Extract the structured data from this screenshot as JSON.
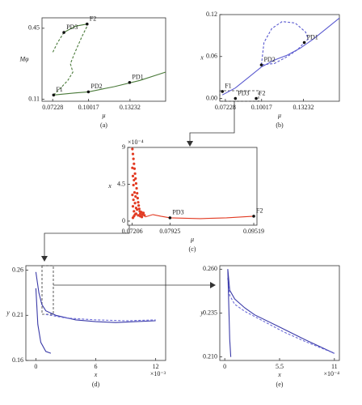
{
  "chart_data": [
    {
      "type": "line",
      "label": "(a)",
      "xlabel": "μ",
      "ylabel": "Mφ",
      "xlim": [
        0.064,
        0.16
      ],
      "ylim": [
        0.1,
        0.5
      ],
      "xticks": [
        0.07228,
        0.10017,
        0.13232
      ],
      "yticks": [
        0.11,
        0.45
      ],
      "series": [
        {
          "color": "#4a7a3a",
          "dash": "solid",
          "x": [
            0.073,
            0.09,
            0.1,
            0.12,
            0.14,
            0.16
          ],
          "values": [
            0.13,
            0.14,
            0.145,
            0.17,
            0.2,
            0.24
          ]
        },
        {
          "color": "#4a7a3a",
          "dash": "dashed",
          "x": [
            0.073,
            0.078,
            0.084,
            0.088,
            0.086,
            0.09,
            0.095,
            0.099
          ],
          "values": [
            0.13,
            0.16,
            0.2,
            0.24,
            0.28,
            0.34,
            0.41,
            0.46
          ]
        },
        {
          "color": "#4a7a3a",
          "dash": "solid",
          "x": [
            0.081,
            0.09,
            0.099
          ],
          "values": [
            0.43,
            0.46,
            0.47
          ]
        },
        {
          "color": "#4a7a3a",
          "dash": "dashed",
          "x": [
            0.081,
            0.076,
            0.072
          ],
          "values": [
            0.43,
            0.38,
            0.33
          ]
        }
      ],
      "annotations": [
        {
          "text": "F1",
          "x": 0.073,
          "y": 0.13
        },
        {
          "text": "PD3",
          "x": 0.081,
          "y": 0.43
        },
        {
          "text": "F2",
          "x": 0.099,
          "y": 0.47
        },
        {
          "text": "PD2",
          "x": 0.1,
          "y": 0.145
        },
        {
          "text": "PD1",
          "x": 0.132,
          "y": 0.19
        }
      ]
    },
    {
      "type": "line",
      "label": "(b)",
      "xlabel": "μ",
      "ylabel": "x",
      "xlim": [
        0.068,
        0.16
      ],
      "ylim": [
        -0.004,
        0.12
      ],
      "xticks": [
        0.07228,
        0.10017,
        0.13232
      ],
      "yticks": [
        {
          "value": 0,
          "label": "0.00"
        },
        0.06,
        0.12
      ],
      "series": [
        {
          "color": "#5a5ad0",
          "dash": "solid",
          "x": [
            0.07,
            0.08,
            0.09,
            0.1,
            0.11,
            0.12,
            0.13,
            0.14,
            0.15,
            0.16
          ],
          "values": [
            0.005,
            0.015,
            0.03,
            0.045,
            0.055,
            0.062,
            0.072,
            0.085,
            0.1,
            0.115
          ]
        },
        {
          "color": "#5a5ad0",
          "dash": "dashed",
          "x": [
            0.1,
            0.102,
            0.108,
            0.116,
            0.126,
            0.134,
            0.136,
            0.133,
            0.128,
            0.12,
            0.11,
            0.1
          ],
          "values": [
            0.048,
            0.08,
            0.1,
            0.11,
            0.108,
            0.095,
            0.085,
            0.08,
            0.07,
            0.06,
            0.05,
            0.048
          ]
        }
      ],
      "annotations": [
        {
          "text": "F1",
          "x": 0.07,
          "y": 0.01
        },
        {
          "text": "PD3",
          "x": 0.08,
          "y": 0.0
        },
        {
          "text": "F2",
          "x": 0.096,
          "y": 0.0
        },
        {
          "text": "PD2",
          "x": 0.1,
          "y": 0.048
        },
        {
          "text": "PD1",
          "x": 0.133,
          "y": 0.08
        }
      ]
    },
    {
      "type": "scatter",
      "label": "(c)",
      "xlabel": "μ",
      "ylabel": "x",
      "y_exponent": "×10⁻⁴",
      "xlim": [
        0.0712,
        0.0958
      ],
      "ylim": [
        -0.5,
        9
      ],
      "xticks": [
        0.07206,
        0.07925,
        0.09519
      ],
      "yticks": [
        0,
        4.5,
        9
      ],
      "series": [
        {
          "color": "#e23a22",
          "dash": "dots",
          "x": [
            0.0721,
            0.0721,
            0.0721,
            0.0722,
            0.0722,
            0.0722,
            0.0723,
            0.0723,
            0.0723,
            0.0724,
            0.0724,
            0.0724,
            0.0725,
            0.0725,
            0.0726,
            0.0726,
            0.0727,
            0.0727,
            0.0728,
            0.0728,
            0.0729,
            0.073,
            0.073,
            0.0731,
            0.0732,
            0.0733,
            0.0734,
            0.0735,
            0.0736,
            0.0738,
            0.074,
            0.0742,
            0.0744,
            0.0722,
            0.0724,
            0.0726,
            0.0728,
            0.0732,
            0.0736,
            0.0739
          ],
          "values": [
            8.8,
            6.5,
            3.2,
            8.2,
            5.5,
            1.8,
            7.6,
            4.4,
            2.6,
            7.0,
            5.0,
            1.2,
            6.4,
            3.5,
            5.8,
            2.2,
            5.2,
            3.0,
            4.6,
            1.6,
            4.0,
            3.4,
            1.4,
            2.8,
            2.3,
            1.9,
            1.5,
            1.2,
            0.9,
            1.1,
            0.8,
            1.0,
            0.7,
            0.4,
            0.6,
            0.8,
            0.9,
            0.7,
            0.6,
            0.5
          ]
        },
        {
          "color": "#e23a22",
          "dash": "solid",
          "x": [
            0.0745,
            0.076,
            0.0775,
            0.07925,
            0.085,
            0.09,
            0.09519
          ],
          "values": [
            0.5,
            0.8,
            0.6,
            0.4,
            0.3,
            0.4,
            0.6
          ]
        }
      ],
      "annotations": [
        {
          "text": "PD3",
          "x": 0.07925,
          "y": 0.4
        },
        {
          "text": "F2",
          "x": 0.09519,
          "y": 0.6
        }
      ]
    },
    {
      "type": "line",
      "label": "(d)",
      "xlabel": "x",
      "ylabel": "y",
      "x_exponent": "×10⁻³",
      "xlim": [
        -1,
        13
      ],
      "ylim": [
        0.16,
        0.265
      ],
      "xticks": [
        0,
        6,
        12
      ],
      "yticks": [
        0.16,
        0.21,
        0.26
      ],
      "series": [
        {
          "color": "#3a3aa8",
          "dash": "solid",
          "x": [
            0,
            0.3,
            0.6,
            1,
            2,
            4,
            6,
            8,
            10,
            12
          ],
          "values": [
            0.258,
            0.235,
            0.222,
            0.215,
            0.21,
            0.205,
            0.203,
            0.202,
            0.203,
            0.204
          ]
        },
        {
          "color": "#6a6ad8",
          "dash": "dashed",
          "x": [
            1,
            3,
            6,
            9,
            12
          ],
          "values": [
            0.211,
            0.207,
            0.205,
            0.204,
            0.205
          ]
        },
        {
          "color": "#3a3aa8",
          "dash": "solid",
          "x": [
            0,
            0.2,
            0.5,
            1,
            1.5
          ],
          "values": [
            0.24,
            0.2,
            0.18,
            0.17,
            0.168
          ]
        }
      ],
      "annotations": []
    },
    {
      "type": "line",
      "label": "(e)",
      "xlabel": "x",
      "ylabel": "y",
      "x_exponent": "×10⁻⁴",
      "xlim": [
        -0.5,
        11.5
      ],
      "ylim": [
        0.208,
        0.262
      ],
      "xticks": [
        0,
        5.5,
        11
      ],
      "yticks": [
        {
          "value": 0.21,
          "label": "0.210"
        },
        {
          "value": 0.235,
          "label": "0.235"
        },
        {
          "value": 0.26,
          "label": "0.260"
        }
      ],
      "series": [
        {
          "color": "#3a3aa8",
          "dash": "solid",
          "x": [
            0.3,
            0.5,
            1,
            2,
            3,
            5.5,
            8,
            11
          ],
          "values": [
            0.26,
            0.248,
            0.243,
            0.238,
            0.234,
            0.227,
            0.22,
            0.212
          ]
        },
        {
          "color": "#6a6ad8",
          "dash": "dashed",
          "x": [
            0.3,
            0.5,
            1,
            2,
            4,
            6,
            8,
            11
          ],
          "values": [
            0.255,
            0.245,
            0.24,
            0.236,
            0.23,
            0.224,
            0.219,
            0.212
          ]
        },
        {
          "color": "#3a3aa8",
          "dash": "solid",
          "x": [
            0.3,
            0.4,
            0.5,
            0.6
          ],
          "values": [
            0.26,
            0.24,
            0.22,
            0.21
          ]
        }
      ],
      "annotations": []
    }
  ]
}
